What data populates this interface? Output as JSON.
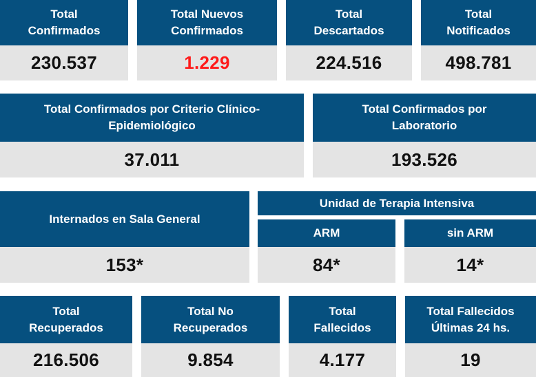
{
  "row1": [
    {
      "title": "Total\nConfirmados",
      "value": "230.537"
    },
    {
      "title": "Total Nuevos\nConfirmados",
      "value": "1.229"
    },
    {
      "title": "Total\nDescartados",
      "value": "224.516"
    },
    {
      "title": "Total\nNotificados",
      "value": "498.781"
    }
  ],
  "row2": [
    {
      "title": "Total Confirmados por Criterio Clínico-\nEpidemiológico",
      "value": "37.011"
    },
    {
      "title": "Total Confirmados por\nLaboratorio",
      "value": "193.526"
    }
  ],
  "row3": {
    "sala_general": {
      "title": "Internados en Sala General",
      "value": "153*"
    },
    "uti_title": "Unidad de Terapia Intensiva",
    "arm": {
      "title": "ARM",
      "value": "84*"
    },
    "sin_arm": {
      "title": "sin ARM",
      "value": "14*"
    }
  },
  "row4": [
    {
      "title": "Total\nRecuperados",
      "value": "216.506"
    },
    {
      "title": "Total No\nRecuperados",
      "value": "9.854"
    },
    {
      "title": "Total\nFallecidos",
      "value": "4.177"
    },
    {
      "title": "Total Fallecidos\nÚltimas 24 hs.",
      "value": "19"
    }
  ],
  "colors": {
    "header_bg": "#06507f",
    "value_bg": "#e4e4e4",
    "highlight_value": "#ff1a1a"
  }
}
